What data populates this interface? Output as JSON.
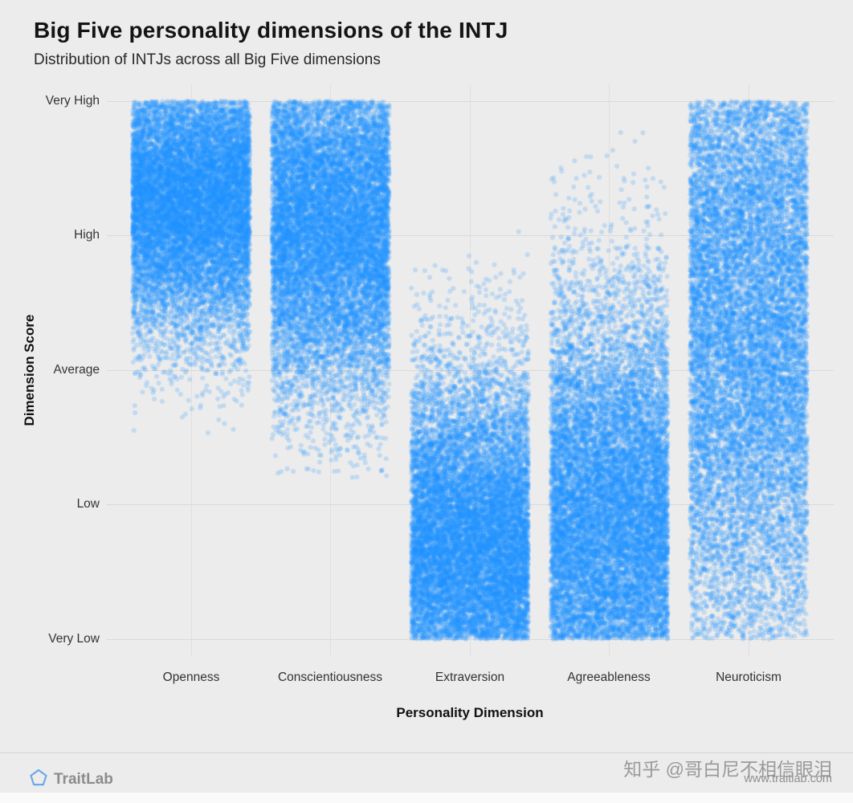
{
  "page": {
    "background": "#ececec",
    "watermark": "知乎 @哥白尼不相信眼泪"
  },
  "footer": {
    "brand": "TraitLab",
    "website": "www.traitlab.com",
    "logo_color": "#6aa9e9"
  },
  "chart_data": {
    "type": "scatter",
    "variant": "jittered strip plot, one translucent point per INTJ profile",
    "title": "Big Five personality dimensions of the INTJ",
    "subtitle": "Distribution of INTJs across all Big Five dimensions",
    "xlabel": "Personality Dimension",
    "ylabel": "Dimension Score",
    "categories": [
      "Openness",
      "Conscientiousness",
      "Extraversion",
      "Agreeableness",
      "Neuroticism"
    ],
    "y_tick_labels": [
      "Very High",
      "High",
      "Average",
      "Low",
      "Very Low"
    ],
    "y_tick_values": [
      1,
      0.75,
      0.5,
      0.25,
      0
    ],
    "ylim": [
      0,
      1
    ],
    "grid": true,
    "legend": false,
    "point_color": "#1E90FF",
    "point_alpha": 0.2,
    "point_radius": 3,
    "points_per_category": 13000,
    "distributions": [
      {
        "category": "Openness",
        "mean": 0.82,
        "sd": 0.13,
        "min": 0.38,
        "max": 1.0
      },
      {
        "category": "Conscientiousness",
        "mean": 0.78,
        "sd": 0.17,
        "min": 0.3,
        "max": 1.0
      },
      {
        "category": "Extraversion",
        "mean": 0.16,
        "sd": 0.17,
        "min": 0.0,
        "max": 0.76
      },
      {
        "category": "Agreeableness",
        "mean": 0.2,
        "sd": 0.22,
        "min": 0.0,
        "max": 0.96
      },
      {
        "category": "Neuroticism",
        "mean": 0.62,
        "sd": 0.35,
        "min": 0.0,
        "max": 1.0
      }
    ]
  }
}
